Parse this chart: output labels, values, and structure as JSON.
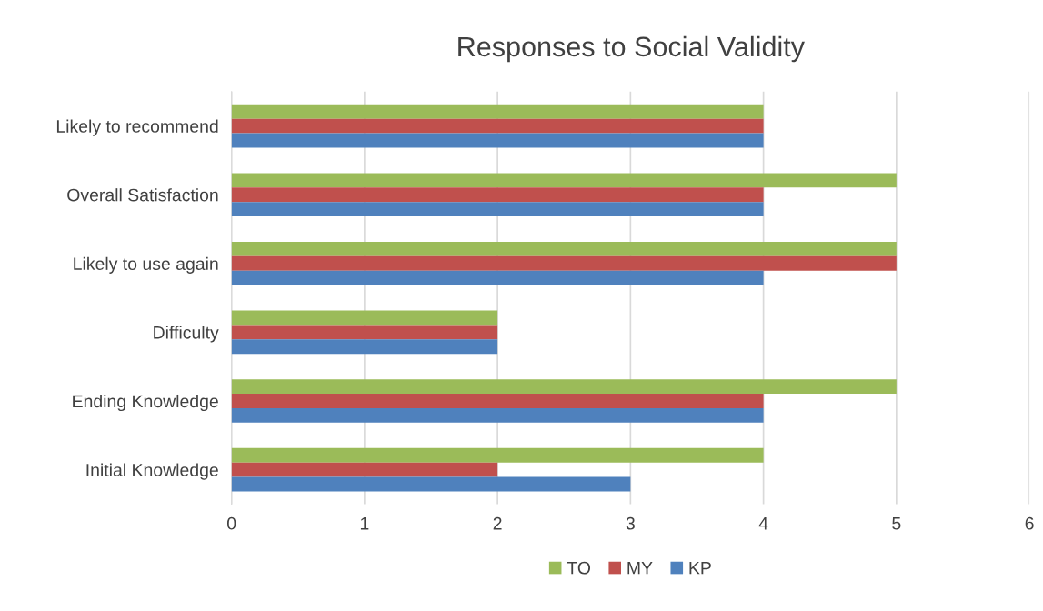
{
  "chart_data": {
    "type": "bar",
    "orientation": "horizontal",
    "title": "Responses to Social Validity",
    "categories": [
      "Likely to recommend",
      "Overall Satisfaction",
      "Likely to use again",
      "Difficulty",
      "Ending Knowledge",
      "Initial Knowledge"
    ],
    "series": [
      {
        "name": "TO",
        "color": "#9bbb59",
        "values": [
          4,
          5,
          5,
          2,
          5,
          4
        ]
      },
      {
        "name": "MY",
        "color": "#c0504d",
        "values": [
          4,
          4,
          5,
          2,
          4,
          2
        ]
      },
      {
        "name": "KP",
        "color": "#4f81bd",
        "values": [
          4,
          4,
          4,
          2,
          4,
          3
        ]
      }
    ],
    "xlim": [
      0,
      6
    ],
    "xticks": [
      0,
      1,
      2,
      3,
      4,
      5,
      6
    ],
    "grid": "x",
    "legend": "bottom"
  }
}
